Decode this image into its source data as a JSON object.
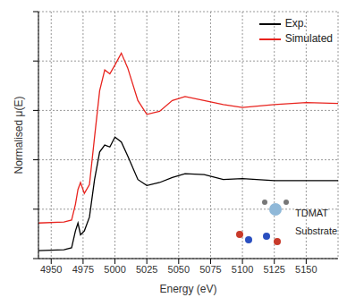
{
  "chart_data": {
    "type": "line",
    "x_label": "Energy (eV)",
    "y_label": "Normalised μ(E)",
    "x": [
      4940,
      4960,
      4966,
      4969,
      4971,
      4973,
      4976,
      4980,
      4984,
      4988,
      4992,
      4996,
      5000,
      5005,
      5010,
      5018,
      5025,
      5035,
      5045,
      5055,
      5070,
      5085,
      5100,
      5125,
      5150,
      5175
    ],
    "series": [
      {
        "name": "Exp.",
        "color": "#000000",
        "values": [
          0.08,
          0.09,
          0.11,
          0.28,
          0.36,
          0.24,
          0.28,
          0.42,
          0.8,
          1.08,
          1.15,
          1.13,
          1.23,
          1.18,
          1.04,
          0.8,
          0.74,
          0.77,
          0.82,
          0.86,
          0.85,
          0.8,
          0.81,
          0.79,
          0.79,
          0.79
        ]
      },
      {
        "name": "Simulated",
        "color": "#e8231e",
        "values": [
          0.36,
          0.37,
          0.39,
          0.55,
          0.7,
          0.77,
          0.66,
          0.75,
          1.23,
          1.7,
          1.91,
          1.87,
          1.96,
          2.08,
          1.93,
          1.6,
          1.46,
          1.49,
          1.6,
          1.64,
          1.6,
          1.56,
          1.53,
          1.56,
          1.58,
          1.57
        ]
      }
    ],
    "xlim": [
      4940,
      5175
    ],
    "xticks": [
      4950,
      4975,
      5000,
      5025,
      5050,
      5075,
      5100,
      5125,
      5150
    ],
    "ylim": [
      0,
      2.5
    ],
    "yticks": [
      0,
      0.5,
      1,
      1.5,
      2,
      2.5
    ],
    "tick_labels": "x",
    "grid": true,
    "legend": "upper right",
    "annotations": [
      "TDMAT",
      "Substrate"
    ]
  }
}
